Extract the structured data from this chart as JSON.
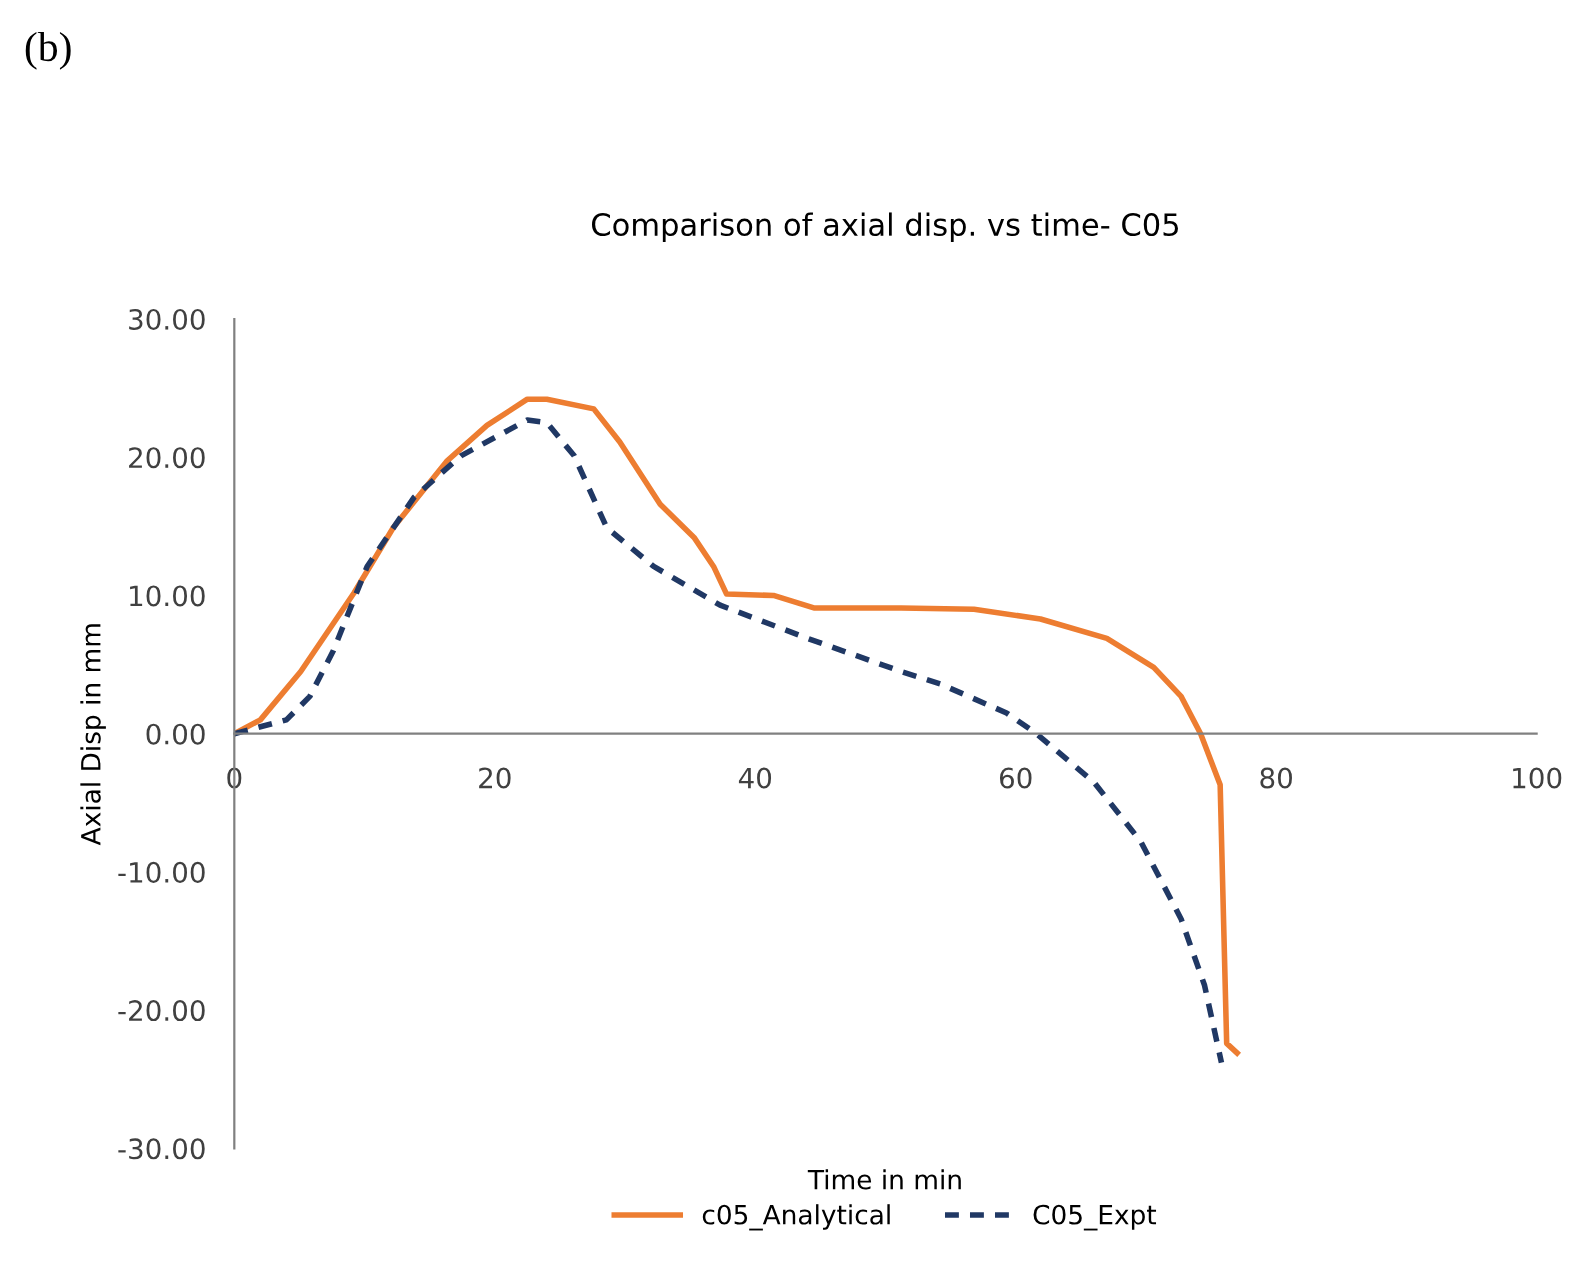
{
  "chart_data": {
    "type": "line",
    "title": "Comparison of axial disp. vs time- C05",
    "xlabel": "Time in min",
    "ylabel": "Axial Disp in mm",
    "annotations": [
      "(b)"
    ],
    "xlim": [
      0,
      100
    ],
    "xticks": [
      0,
      20,
      40,
      60,
      80,
      100
    ],
    "ylim": [
      -30,
      30
    ],
    "yticks": [
      {
        "value": -30,
        "label": "-30.00"
      },
      {
        "value": -20,
        "label": "-20.00"
      },
      {
        "value": -10,
        "label": "-10.00"
      },
      {
        "value": 0,
        "label": "0.00"
      },
      {
        "value": 10,
        "label": "10.00"
      },
      {
        "value": 20,
        "label": "20.00"
      },
      {
        "value": 30,
        "label": "30.00"
      }
    ],
    "grid": false,
    "legend": "bottom",
    "series": [
      {
        "name": "c05_Analytical",
        "color": "#ed7d31",
        "line_style": "solid",
        "x": [
          0,
          2.0,
          5.1,
          9.2,
          12.2,
          16.3,
          19.4,
          22.5,
          24.0,
          27.6,
          29.6,
          32.7,
          35.3,
          36.8,
          37.8,
          41.4,
          44.5,
          51.2,
          56.8,
          61.9,
          67.0,
          70.6,
          72.7,
          74.2,
          75.7,
          76.2,
          77.0
        ],
        "values": [
          0,
          1.0,
          4.5,
          10.2,
          14.9,
          19.7,
          22.3,
          24.2,
          24.2,
          23.5,
          21.1,
          16.6,
          14.2,
          12.1,
          10.1,
          10.0,
          9.1,
          9.1,
          9.0,
          8.3,
          6.9,
          4.8,
          2.7,
          0.0,
          -3.7,
          -22.4,
          -23.1
        ]
      },
      {
        "name": "C05_Expt",
        "color": "#203864",
        "line_style": "dashed",
        "x": [
          0,
          4.0,
          5.8,
          7.6,
          10.2,
          13.8,
          17.4,
          22.5,
          24.0,
          26.1,
          28.6,
          32.2,
          37.3,
          44.0,
          51.2,
          54.2,
          59.3,
          61.6,
          66.0,
          69.6,
          72.7,
          74.5,
          75.8
        ],
        "values": [
          0,
          1.0,
          2.7,
          6.0,
          12.1,
          17.1,
          20.1,
          22.7,
          22.5,
          20.1,
          14.9,
          12.1,
          9.3,
          6.9,
          4.5,
          3.6,
          1.5,
          0.0,
          -3.5,
          -7.8,
          -13.4,
          -18.2,
          -23.8
        ]
      }
    ]
  }
}
